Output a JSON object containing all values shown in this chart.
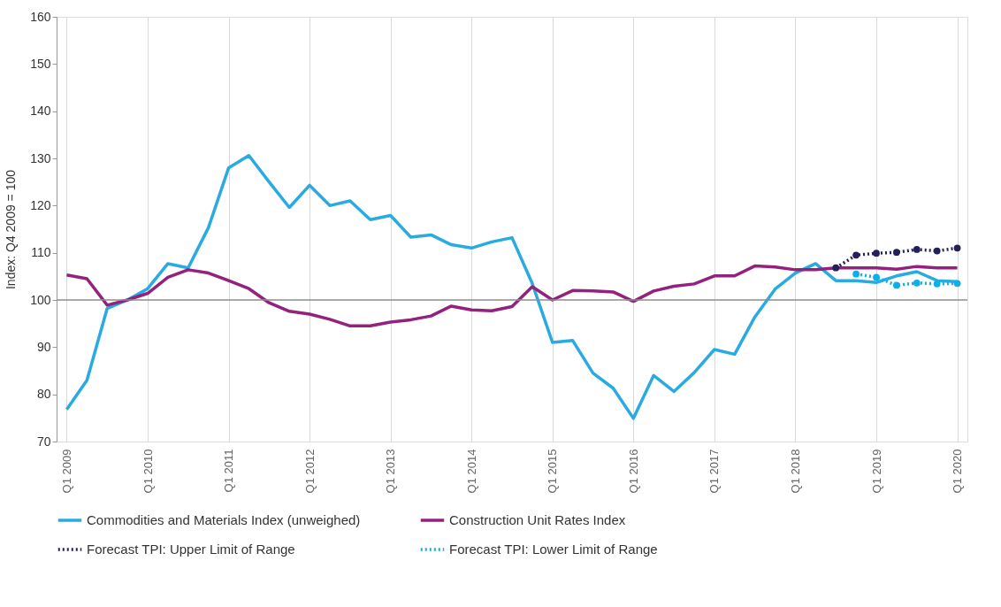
{
  "chart_data": {
    "type": "line",
    "ylabel": "Index: Q4 2009 = 100",
    "categories": [
      "Q1 2009",
      null,
      null,
      null,
      "Q1 2010",
      null,
      null,
      null,
      "Q1 2011",
      null,
      null,
      null,
      "Q1 2012",
      null,
      null,
      null,
      "Q1 2013",
      null,
      null,
      null,
      "Q1 2014",
      null,
      null,
      null,
      "Q1 2015",
      null,
      null,
      null,
      "Q1 2016",
      null,
      null,
      null,
      "Q1 2017",
      null,
      null,
      null,
      "Q1 2018",
      null,
      null,
      null,
      "Q1 2019",
      null,
      null,
      null,
      "Q1 2020"
    ],
    "series": [
      {
        "name": "Commodities and Materials Index (unweighed)",
        "color": "#29abe2",
        "line_style": "solid",
        "marker": "none",
        "values": [
          76.8,
          83.0,
          98.2,
          100,
          102.4,
          107.7,
          106.8,
          115.3,
          128.0,
          130.6,
          125.0,
          119.6,
          124.3,
          120.0,
          121.0,
          117.0,
          117.9,
          113.3,
          113.8,
          111.7,
          111.0,
          112.3,
          113.2,
          103.5,
          91.0,
          91.4,
          84.5,
          81.3,
          74.9,
          84.0,
          80.6,
          84.6,
          89.5,
          88.5,
          96.4,
          102.3,
          105.7,
          107.7,
          104.1,
          104.1,
          103.7,
          105.1,
          106.0,
          104.1,
          103.9
        ]
      },
      {
        "name": "Construction Unit Rates Index",
        "color": "#94217e",
        "line_style": "solid",
        "marker": "none",
        "values": [
          105.3,
          104.5,
          98.9,
          100,
          101.4,
          104.8,
          106.4,
          105.7,
          104.1,
          102.4,
          99.4,
          97.6,
          97.0,
          95.9,
          94.5,
          94.5,
          95.3,
          95.8,
          96.6,
          98.7,
          97.9,
          97.7,
          98.6,
          102.8,
          100.0,
          102.0,
          101.9,
          101.7,
          99.7,
          101.9,
          102.9,
          103.4,
          105.1,
          105.1,
          107.2,
          107.0,
          106.4,
          106.4,
          106.8,
          106.8,
          106.8,
          106.5,
          107.1,
          106.8,
          106.8
        ]
      },
      {
        "name": "Forecast TPI: Upper Limit of Range",
        "color": "#221f5a",
        "line_style": "dotted",
        "marker": "circle",
        "values": [
          null,
          null,
          null,
          null,
          null,
          null,
          null,
          null,
          null,
          null,
          null,
          null,
          null,
          null,
          null,
          null,
          null,
          null,
          null,
          null,
          null,
          null,
          null,
          null,
          null,
          null,
          null,
          null,
          null,
          null,
          null,
          null,
          null,
          null,
          null,
          null,
          null,
          null,
          106.8,
          109.5,
          109.9,
          110.1,
          110.7,
          110.4,
          111.0
        ]
      },
      {
        "name": "Forecast TPI: Lower Limit of Range",
        "color": "#0ab0ea",
        "line_style": "dotted",
        "marker": "circle",
        "values": [
          null,
          null,
          null,
          null,
          null,
          null,
          null,
          null,
          null,
          null,
          null,
          null,
          null,
          null,
          null,
          null,
          null,
          null,
          null,
          null,
          null,
          null,
          null,
          null,
          null,
          null,
          null,
          null,
          null,
          null,
          null,
          null,
          null,
          null,
          null,
          null,
          null,
          null,
          null,
          105.5,
          104.8,
          103.1,
          103.6,
          103.4,
          103.5
        ]
      }
    ],
    "ylim": [
      70,
      160
    ],
    "yticks": [
      70,
      80,
      90,
      100,
      110,
      120,
      130,
      140,
      150,
      160
    ],
    "ref_lines": [
      {
        "axis": "y",
        "value": 100,
        "color": "#8c8c8c"
      }
    ],
    "grid": "x",
    "legend": "bottom"
  }
}
